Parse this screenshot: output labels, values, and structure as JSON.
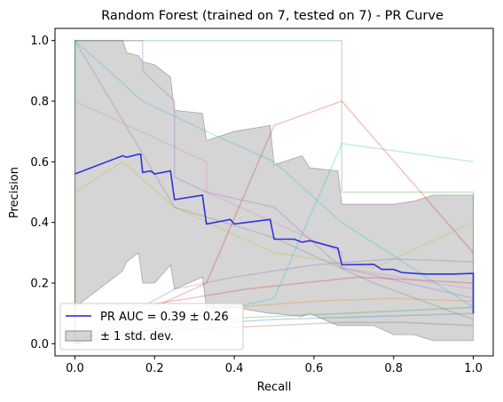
{
  "chart_data": {
    "type": "line",
    "title": "Random Forest (trained on 7, tested on 7) -  PR Curve",
    "xlabel": "Recall",
    "ylabel": "Precision",
    "xlim": [
      -0.05,
      1.05
    ],
    "ylim": [
      -0.04,
      1.04
    ],
    "xticks": [
      0.0,
      0.2,
      0.4,
      0.6,
      0.8,
      1.0
    ],
    "yticks": [
      0.0,
      0.2,
      0.4,
      0.6,
      0.8,
      1.0
    ],
    "grid": false,
    "legend_position": "lower-left",
    "mean_curve": {
      "name": "PR AUC = 0.39 ± 0.26",
      "color": "#1f1fe0",
      "x": [
        0.0,
        0.12,
        0.13,
        0.16,
        0.165,
        0.17,
        0.19,
        0.2,
        0.24,
        0.25,
        0.32,
        0.33,
        0.39,
        0.4,
        0.49,
        0.5,
        0.55,
        0.57,
        0.59,
        0.66,
        0.67,
        0.75,
        0.77,
        0.8,
        0.82,
        0.85,
        0.88,
        0.9,
        0.95,
        1.0,
        1.0
      ],
      "y": [
        0.56,
        0.62,
        0.615,
        0.625,
        0.625,
        0.565,
        0.57,
        0.56,
        0.57,
        0.475,
        0.49,
        0.395,
        0.41,
        0.395,
        0.41,
        0.345,
        0.345,
        0.335,
        0.34,
        0.315,
        0.26,
        0.262,
        0.245,
        0.245,
        0.235,
        0.232,
        0.23,
        0.23,
        0.23,
        0.232,
        0.1
      ]
    },
    "std_band": {
      "name": "± 1 std. dev.",
      "color": "#b3b3b3",
      "x": [
        0.0,
        0.12,
        0.13,
        0.16,
        0.17,
        0.2,
        0.24,
        0.25,
        0.32,
        0.33,
        0.4,
        0.49,
        0.5,
        0.57,
        0.59,
        0.66,
        0.67,
        0.75,
        0.8,
        0.85,
        0.9,
        1.0
      ],
      "upper": [
        1.0,
        1.0,
        0.96,
        0.95,
        0.93,
        0.92,
        0.88,
        0.77,
        0.76,
        0.67,
        0.7,
        0.72,
        0.59,
        0.62,
        0.58,
        0.57,
        0.46,
        0.46,
        0.46,
        0.47,
        0.49,
        0.49
      ],
      "lower": [
        0.12,
        0.24,
        0.27,
        0.3,
        0.2,
        0.2,
        0.26,
        0.18,
        0.22,
        0.12,
        0.12,
        0.1,
        0.1,
        0.09,
        0.1,
        0.06,
        0.06,
        0.06,
        0.03,
        0.03,
        0.01,
        0.01
      ]
    },
    "fold_curves": [
      {
        "color": "#9467bd",
        "x": [
          0.0,
          0.17,
          0.17,
          0.25,
          0.25,
          0.33,
          0.5,
          0.67,
          1.0
        ],
        "y": [
          1.0,
          1.0,
          0.9,
          0.8,
          0.55,
          0.5,
          0.45,
          0.25,
          0.15
        ]
      },
      {
        "color": "#17becf",
        "x": [
          0.0,
          0.0,
          0.17,
          0.33,
          0.5,
          0.67,
          1.0
        ],
        "y": [
          0.0,
          1.0,
          0.8,
          0.7,
          0.6,
          0.4,
          0.12
        ]
      },
      {
        "color": "#2ca02c",
        "x": [
          0.0,
          0.0,
          0.67,
          0.67,
          1.0,
          1.0
        ],
        "y": [
          0.0,
          1.0,
          1.0,
          0.5,
          0.5,
          0.1
        ]
      },
      {
        "color": "#bcbd22",
        "x": [
          0.0,
          0.0,
          0.12,
          0.25,
          0.5,
          0.75,
          1.0
        ],
        "y": [
          0.0,
          0.5,
          0.6,
          0.45,
          0.3,
          0.25,
          0.4
        ]
      },
      {
        "color": "#d62728",
        "x": [
          0.0,
          0.14,
          0.29,
          0.43,
          0.57,
          0.71,
          0.86,
          1.0
        ],
        "y": [
          0.0,
          0.12,
          0.15,
          0.18,
          0.2,
          0.22,
          0.21,
          0.2
        ]
      },
      {
        "color": "#ff7f0e",
        "x": [
          0.0,
          0.2,
          0.4,
          0.6,
          0.8,
          1.0
        ],
        "y": [
          0.0,
          0.1,
          0.12,
          0.14,
          0.15,
          0.14
        ]
      },
      {
        "color": "#1f77b4",
        "x": [
          0.0,
          0.25,
          0.5,
          0.75,
          1.0
        ],
        "y": [
          0.0,
          0.06,
          0.08,
          0.09,
          0.1
        ]
      },
      {
        "color": "#8c564b",
        "x": [
          0.0,
          0.17,
          0.33,
          0.5,
          0.67,
          0.83,
          1.0
        ],
        "y": [
          0.0,
          0.04,
          0.05,
          0.06,
          0.07,
          0.07,
          0.06
        ]
      },
      {
        "color": "#e377c2",
        "x": [
          0.0,
          0.0,
          0.33,
          0.33,
          0.67,
          0.67,
          1.0
        ],
        "y": [
          0.0,
          0.8,
          0.6,
          0.5,
          0.3,
          0.25,
          0.18
        ]
      },
      {
        "color": "#7f7f7f",
        "x": [
          0.0,
          0.0,
          0.25,
          0.5,
          0.75,
          1.0
        ],
        "y": [
          0.0,
          1.0,
          0.45,
          0.35,
          0.2,
          0.08
        ]
      },
      {
        "color": "#17becf",
        "x": [
          0.0,
          0.5,
          0.67,
          1.0
        ],
        "y": [
          0.0,
          0.15,
          0.66,
          0.6
        ]
      },
      {
        "color": "#d62728",
        "x": [
          0.0,
          0.33,
          0.5,
          0.67,
          1.0
        ],
        "y": [
          0.0,
          0.2,
          0.72,
          0.8,
          0.3
        ]
      },
      {
        "color": "#9467bd",
        "x": [
          0.0,
          0.25,
          0.4,
          0.6,
          0.8,
          1.0
        ],
        "y": [
          0.0,
          0.18,
          0.22,
          0.26,
          0.28,
          0.27
        ]
      },
      {
        "color": "#2ca02c",
        "x": [
          0.0,
          0.33,
          0.67,
          1.0
        ],
        "y": [
          0.0,
          0.08,
          0.1,
          0.12
        ]
      }
    ],
    "legend": [
      {
        "label": "PR AUC = 0.39 ± 0.26",
        "kind": "line",
        "color": "#1f1fe0"
      },
      {
        "label": "± 1 std. dev.",
        "kind": "patch",
        "color": "#b3b3b3"
      }
    ]
  }
}
